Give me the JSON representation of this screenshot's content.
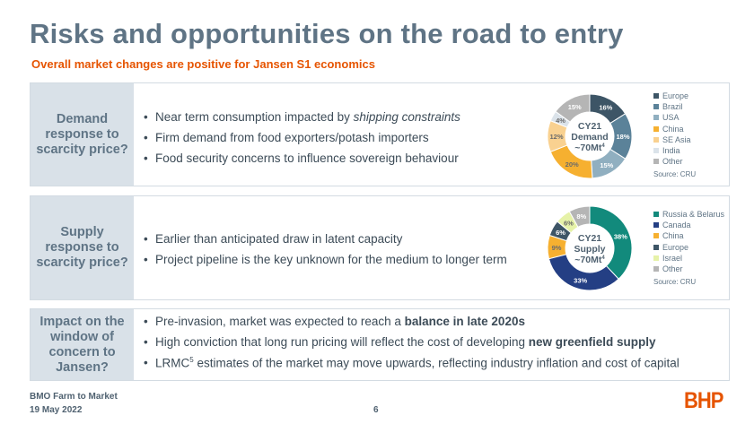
{
  "title": "Risks and opportunities on the road to entry",
  "subtitle": "Overall market changes are positive for Jansen S1 economics",
  "panels": [
    {
      "label": "Demand response to scarcity price?",
      "bullets": [
        {
          "pre": "Near term consumption impacted by ",
          "em": "shipping constraints"
        },
        {
          "pre": "Firm demand from food exporters/potash importers"
        },
        {
          "pre": "Food security concerns to influence sovereign behaviour"
        }
      ]
    },
    {
      "label": "Supply response to scarcity price?",
      "bullets": [
        {
          "pre": "Earlier than anticipated draw in latent capacity"
        },
        {
          "pre": "Project pipeline is the key unknown for the medium to longer term"
        }
      ]
    },
    {
      "label": "Impact on the window of concern to Jansen?",
      "bullets": [
        {
          "pre": "Pre-invasion, market was expected to reach a ",
          "b": "balance in late 2020s"
        },
        {
          "pre": "High conviction that long run pricing will reflect the cost of developing ",
          "b": "new greenfield supply"
        },
        {
          "pre": "LRMC",
          "sup": "5",
          "post": " estimates of the market may move upwards, reflecting industry inflation and cost of capital"
        }
      ]
    }
  ],
  "chart_data": [
    {
      "type": "pie",
      "center_label": [
        "CY21",
        "Demand",
        "~70Mt"
      ],
      "center_sup": "4",
      "source": "Source: CRU",
      "categories": [
        "Europe",
        "Brazil",
        "USA",
        "China",
        "SE Asia",
        "India",
        "Other"
      ],
      "values": [
        16,
        18,
        15,
        20,
        12,
        4,
        15
      ],
      "colors": [
        "#3d5566",
        "#5b8299",
        "#90afc0",
        "#f6b030",
        "#f9d190",
        "#dbe3ea",
        "#b5b5b5"
      ]
    },
    {
      "type": "pie",
      "center_label": [
        "CY21",
        "Supply",
        "~70Mt"
      ],
      "center_sup": "4",
      "source": "Source: CRU",
      "categories": [
        "Russia & Belarus",
        "Canada",
        "China",
        "Europe",
        "Israel",
        "Other"
      ],
      "values": [
        38,
        33,
        9,
        6,
        6,
        8
      ],
      "colors": [
        "#128a7c",
        "#243f84",
        "#f6b030",
        "#3d5566",
        "#e6f2a8",
        "#b5b5b5"
      ]
    }
  ],
  "footer": {
    "event": "BMO Farm to Market",
    "date": "19 May 2022",
    "page": "6",
    "logo": "BHP"
  }
}
